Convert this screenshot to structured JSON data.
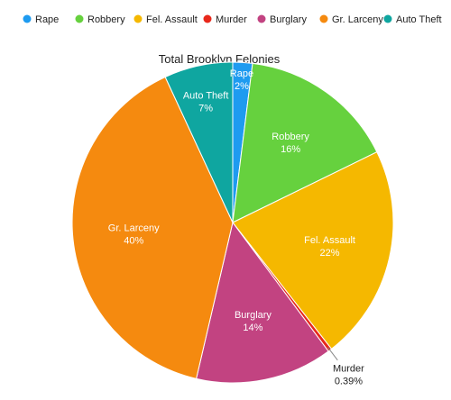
{
  "chart_data": {
    "type": "pie",
    "title": "Total Brooklyn Felonies",
    "legend_position": "top",
    "start_angle_deg": 0,
    "direction": "clockwise",
    "slices": [
      {
        "name": "Rape",
        "value": 2.0,
        "label": "2%",
        "color": "#1e9bf0"
      },
      {
        "name": "Robbery",
        "value": 16.0,
        "label": "16%",
        "color": "#66d13e"
      },
      {
        "name": "Fel. Assault",
        "value": 22.0,
        "label": "22%",
        "color": "#f5b800"
      },
      {
        "name": "Murder",
        "value": 0.39,
        "label": "0.39%",
        "color": "#e8281b"
      },
      {
        "name": "Burglary",
        "value": 14.0,
        "label": "14%",
        "color": "#c24381"
      },
      {
        "name": "Gr. Larceny",
        "value": 40.0,
        "label": "40%",
        "color": "#f58a0f"
      },
      {
        "name": "Auto Theft",
        "value": 7.0,
        "label": "7%",
        "color": "#0fa6a0"
      }
    ]
  }
}
